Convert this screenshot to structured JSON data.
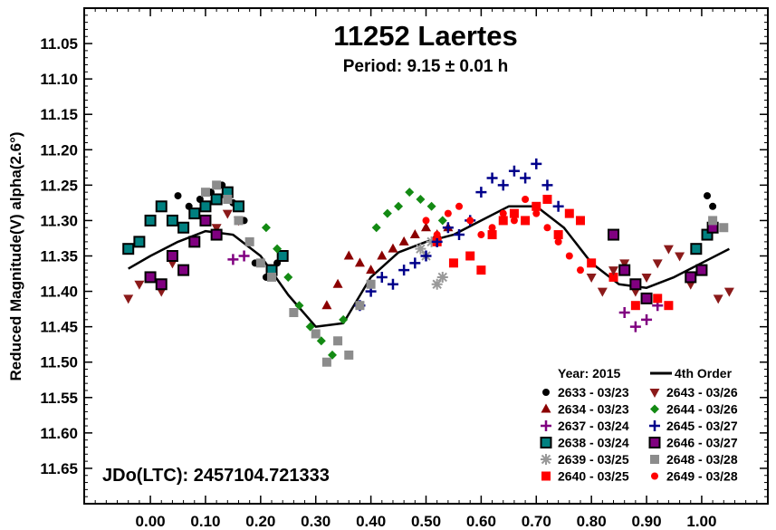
{
  "chart_data": {
    "type": "scatter",
    "title": "11252 Laertes",
    "subtitle": "Period: 9.15 ± 0.01 h",
    "xlabel": "",
    "ylabel": "Reduced Magnitude(V) alpha(2.6°)",
    "xlim": [
      -0.12,
      1.12
    ],
    "ylim": [
      11.0,
      11.7
    ],
    "y_inverted": true,
    "x_ticks": [
      "0.00",
      "0.10",
      "0.20",
      "0.30",
      "0.40",
      "0.50",
      "0.60",
      "0.70",
      "0.80",
      "0.90",
      "1.00"
    ],
    "y_ticks": [
      "11.05",
      "11.10",
      "11.15",
      "11.20",
      "11.25",
      "11.30",
      "11.35",
      "11.40",
      "11.45",
      "11.50",
      "11.55",
      "11.60",
      "11.65"
    ],
    "annotation": "JDo(LTC): 2457104.721333",
    "legend_title": "Year: 2015",
    "legend_placement": "bottom-right",
    "fit": {
      "name": "4th Order",
      "phase": [
        -0.04,
        0.0,
        0.05,
        0.1,
        0.15,
        0.2,
        0.25,
        0.3,
        0.35,
        0.4,
        0.45,
        0.5,
        0.55,
        0.6,
        0.65,
        0.7,
        0.75,
        0.8,
        0.85,
        0.9,
        0.95,
        1.0,
        1.05
      ],
      "mag": [
        11.368,
        11.35,
        11.33,
        11.315,
        11.32,
        11.35,
        11.405,
        11.45,
        11.445,
        11.38,
        11.345,
        11.33,
        11.32,
        11.3,
        11.28,
        11.28,
        11.31,
        11.36,
        11.39,
        11.395,
        11.38,
        11.36,
        11.34
      ]
    },
    "series": [
      {
        "name": "2633 - 03/23",
        "marker": "circle",
        "color": "#000000",
        "x": [
          0.05,
          0.07,
          0.09,
          0.11,
          0.13,
          0.15,
          0.17,
          0.19,
          0.21,
          0.23,
          1.01,
          1.02
        ],
        "y": [
          11.265,
          11.28,
          11.27,
          11.26,
          11.25,
          11.275,
          11.3,
          11.36,
          11.38,
          11.36,
          11.265,
          11.28
        ]
      },
      {
        "name": "2634 - 03/23",
        "marker": "triangle",
        "color": "#8b0000",
        "x": [
          0.32,
          0.34,
          0.36,
          0.38,
          0.4,
          0.42,
          0.44,
          0.46,
          0.48,
          0.5,
          0.52,
          0.54
        ],
        "y": [
          11.42,
          11.39,
          11.35,
          11.36,
          11.37,
          11.35,
          11.34,
          11.33,
          11.32,
          11.31,
          11.32,
          11.31
        ]
      },
      {
        "name": "2637 - 03/24",
        "marker": "plus",
        "color": "#800080",
        "x": [
          0.15,
          0.17,
          0.86,
          0.88,
          0.9,
          0.92
        ],
        "y": [
          11.355,
          11.35,
          11.43,
          11.45,
          11.44,
          11.42
        ]
      },
      {
        "name": "2638 - 03/24",
        "marker": "square-teal",
        "color": "#008080",
        "x": [
          -0.04,
          -0.02,
          0.0,
          0.02,
          0.04,
          0.06,
          0.08,
          0.1,
          0.12,
          0.14,
          0.16,
          0.22,
          0.24,
          0.99,
          1.01
        ],
        "y": [
          11.34,
          11.33,
          11.3,
          11.28,
          11.3,
          11.31,
          11.29,
          11.28,
          11.27,
          11.26,
          11.28,
          11.37,
          11.35,
          11.34,
          11.32
        ]
      },
      {
        "name": "2639 - 03/25",
        "marker": "asterisk",
        "color": "#999999",
        "x": [
          0.49,
          0.5,
          0.51,
          0.52,
          0.53
        ],
        "y": [
          11.34,
          11.35,
          11.33,
          11.39,
          11.38
        ]
      },
      {
        "name": "2640 - 03/25",
        "marker": "square",
        "color": "#ff0000",
        "x": [
          0.52,
          0.55,
          0.58,
          0.6,
          0.62,
          0.64,
          0.66,
          0.68,
          0.7,
          0.72,
          0.74,
          0.76,
          0.78,
          0.8,
          0.84,
          0.88,
          0.92,
          0.94
        ],
        "y": [
          11.33,
          11.36,
          11.35,
          11.37,
          11.32,
          11.3,
          11.29,
          11.3,
          11.28,
          11.27,
          11.32,
          11.29,
          11.3,
          11.36,
          11.38,
          11.42,
          11.41,
          11.42
        ]
      },
      {
        "name": "2643 - 03/26",
        "marker": "triangle-down",
        "color": "#8b1a1a",
        "x": [
          -0.04,
          -0.02,
          0.0,
          0.02,
          0.04,
          0.12,
          0.14,
          0.16,
          0.8,
          0.82,
          0.84,
          0.86,
          0.88,
          0.9,
          0.92,
          0.94,
          0.96,
          0.98,
          1.03,
          1.05
        ],
        "y": [
          11.41,
          11.39,
          11.38,
          11.4,
          11.36,
          11.31,
          11.29,
          11.3,
          11.38,
          11.4,
          11.37,
          11.36,
          11.4,
          11.38,
          11.36,
          11.34,
          11.35,
          11.39,
          11.41,
          11.4
        ]
      },
      {
        "name": "2644 - 03/26",
        "marker": "diamond",
        "color": "#138a13",
        "x": [
          0.21,
          0.23,
          0.25,
          0.27,
          0.29,
          0.31,
          0.33,
          0.35,
          0.41,
          0.43,
          0.45,
          0.47,
          0.49,
          0.51,
          0.53
        ],
        "y": [
          11.31,
          11.34,
          11.38,
          11.42,
          11.45,
          11.47,
          11.49,
          11.44,
          11.31,
          11.29,
          11.28,
          11.26,
          11.27,
          11.28,
          11.3
        ]
      },
      {
        "name": "2645 - 03/27",
        "marker": "plus",
        "color": "#00008b",
        "x": [
          0.38,
          0.4,
          0.42,
          0.44,
          0.46,
          0.48,
          0.5,
          0.52,
          0.54,
          0.56,
          0.58,
          0.6,
          0.62,
          0.64,
          0.66,
          0.68,
          0.7,
          0.72,
          0.74
        ],
        "y": [
          11.42,
          11.4,
          11.38,
          11.39,
          11.37,
          11.36,
          11.35,
          11.33,
          11.31,
          11.32,
          11.3,
          11.26,
          11.24,
          11.25,
          11.23,
          11.24,
          11.22,
          11.25,
          11.28
        ]
      },
      {
        "name": "2646 - 03/27",
        "marker": "square-purple",
        "color": "#800080",
        "x": [
          0.0,
          0.02,
          0.04,
          0.06,
          0.08,
          0.1,
          0.12,
          0.84,
          0.86,
          0.88,
          0.9,
          0.98,
          1.0,
          1.02
        ],
        "y": [
          11.38,
          11.39,
          11.35,
          11.37,
          11.33,
          11.3,
          11.32,
          11.32,
          11.37,
          11.39,
          11.41,
          11.38,
          11.37,
          11.31
        ]
      },
      {
        "name": "2648 - 03/28",
        "marker": "square",
        "color": "#8c8c8c",
        "x": [
          0.1,
          0.12,
          0.14,
          0.16,
          0.18,
          0.2,
          0.22,
          0.26,
          0.3,
          0.32,
          0.34,
          0.36,
          0.38,
          0.4,
          1.02,
          1.04
        ],
        "y": [
          11.26,
          11.25,
          11.27,
          11.3,
          11.33,
          11.36,
          11.38,
          11.43,
          11.46,
          11.5,
          11.47,
          11.49,
          11.42,
          11.39,
          11.3,
          11.31
        ]
      },
      {
        "name": "2649 - 03/28",
        "marker": "circle",
        "color": "#ff0000",
        "x": [
          0.5,
          0.52,
          0.54,
          0.56,
          0.58,
          0.6,
          0.62,
          0.64,
          0.66,
          0.68,
          0.7,
          0.72,
          0.74,
          0.76,
          0.78
        ],
        "y": [
          11.3,
          11.32,
          11.29,
          11.28,
          11.3,
          11.32,
          11.31,
          11.29,
          11.3,
          11.27,
          11.29,
          11.31,
          11.33,
          11.35,
          11.37
        ]
      }
    ]
  }
}
